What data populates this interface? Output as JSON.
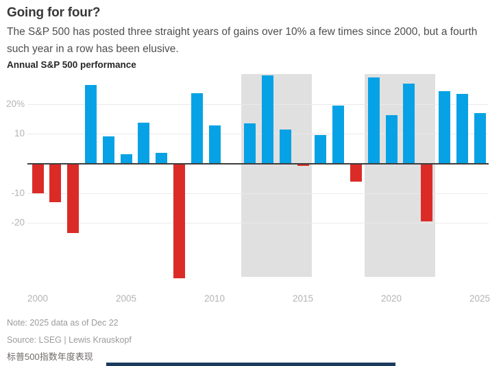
{
  "header": {
    "title": "Going for four?",
    "subtitle": "The S&P 500 has posted three straight years of gains over 10% a few times since 2000, but a fourth such year in a row has been elusive.",
    "chart_heading": "Annual S&P 500 performance"
  },
  "chart_data": {
    "type": "bar",
    "title": "Annual S&P 500 performance",
    "xlabel": "",
    "ylabel": "",
    "x": [
      2000,
      2001,
      2002,
      2003,
      2004,
      2005,
      2006,
      2007,
      2008,
      2009,
      2010,
      2011,
      2012,
      2013,
      2014,
      2015,
      2016,
      2017,
      2018,
      2019,
      2020,
      2021,
      2022,
      2023,
      2024,
      2025
    ],
    "values": [
      -10.1,
      -13.0,
      -23.4,
      26.4,
      9.0,
      3.0,
      13.6,
      3.5,
      -38.5,
      23.5,
      12.8,
      0.0,
      13.4,
      29.6,
      11.4,
      -0.7,
      9.5,
      19.4,
      -6.2,
      28.9,
      16.3,
      26.9,
      -19.4,
      24.2,
      23.3,
      17.0
    ],
    "ylim": [
      -38.5,
      30
    ],
    "ytick_values": [
      20,
      10,
      -10,
      -20
    ],
    "ytick_labels": [
      "20%",
      "10",
      "-10",
      "-20"
    ],
    "xtick_values": [
      2000,
      2005,
      2010,
      2015,
      2020,
      2025
    ],
    "xtick_labels": [
      "2000",
      "2005",
      "2010",
      "2015",
      "2020",
      "2025"
    ],
    "grid": true,
    "legend": "none",
    "highlight_regions": [
      {
        "from_year": 2011.5,
        "to_year": 2015.5
      },
      {
        "from_year": 2018.5,
        "to_year": 2022.5
      }
    ]
  },
  "colors": {
    "positive_bar": "#07a2e5",
    "negative_bar": "#db2b27",
    "highlight_band": "#e0e0e0",
    "gridline": "#e9e9e9",
    "zero_axis": "#3d3d3d",
    "tick_label": "#b3b3b3",
    "bottom_bar": "#1c3a5e"
  },
  "footer": {
    "note": "Note: 2025 data as of Dec 22",
    "source": "Source: LSEG | Lewis Krauskopf",
    "caption_cn": "标普500指数年度表现"
  }
}
